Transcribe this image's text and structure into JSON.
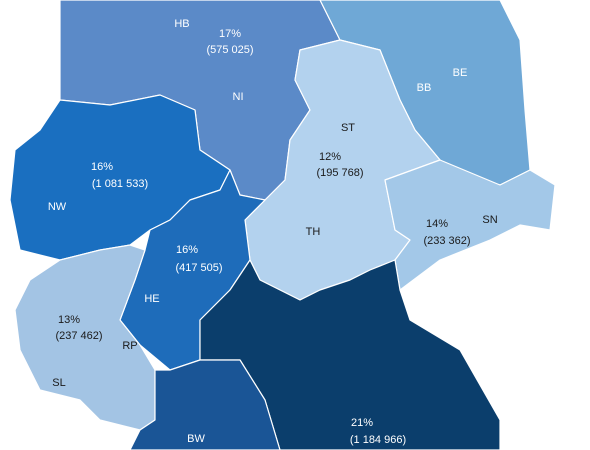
{
  "regions": [
    {
      "labels": [
        "HB",
        "NI"
      ],
      "share": "17%",
      "count": "(575 025)"
    },
    {
      "labels": [
        "BB",
        "BE"
      ]
    },
    {
      "labels": [
        "NW"
      ],
      "share": "16%",
      "count": "(1 081 533)"
    },
    {
      "labels": [
        "HE"
      ],
      "share": "16%",
      "count": "(417 505)"
    },
    {
      "labels": [
        "ST",
        "TH"
      ],
      "share": "12%",
      "count": "(195 768)"
    },
    {
      "labels": [
        "SN"
      ],
      "share": "14%",
      "count": "(233 362)"
    },
    {
      "labels": [
        "RP",
        "SL"
      ],
      "share": "13%",
      "count": "(237 462)"
    },
    {
      "labels": [
        "BW"
      ]
    },
    {
      "share": "21%",
      "count": "(1 184 966)"
    }
  ]
}
